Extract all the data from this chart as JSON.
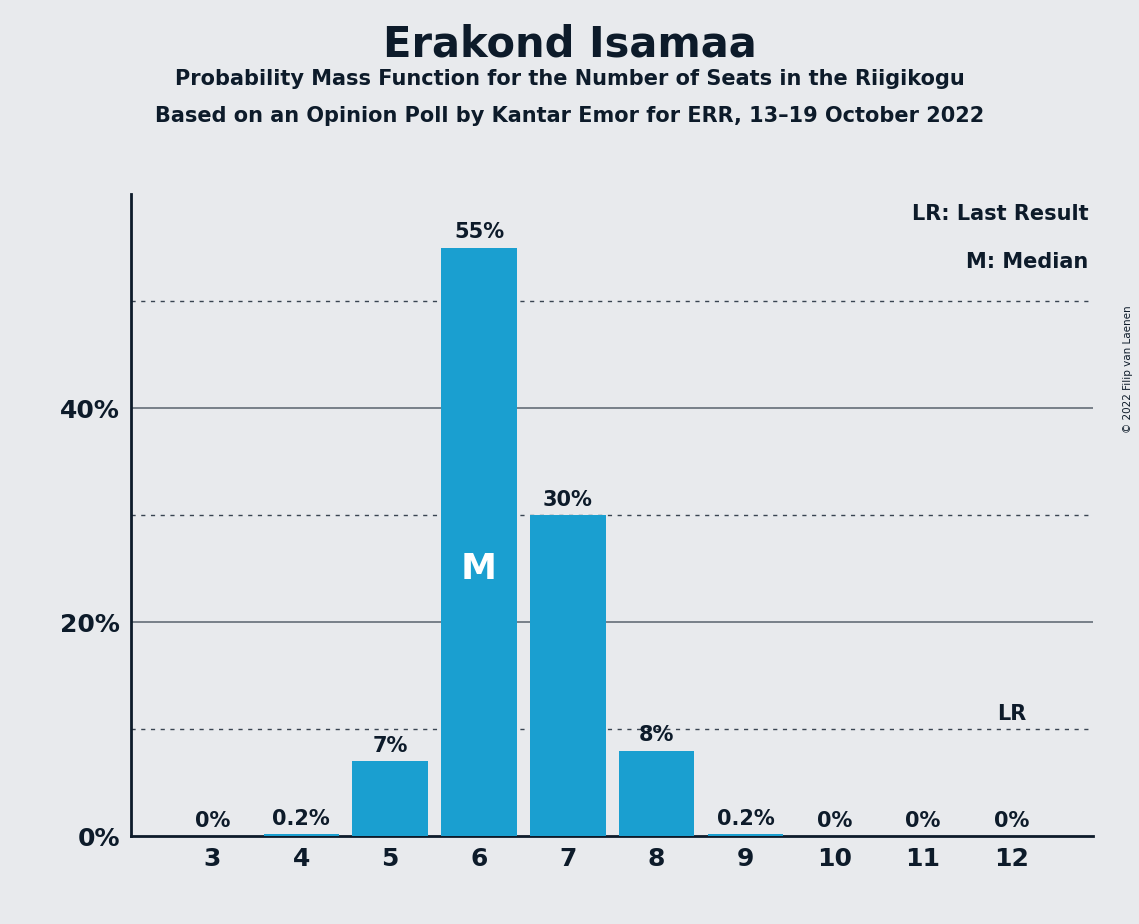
{
  "title": "Erakond Isamaa",
  "subtitle1": "Probability Mass Function for the Number of Seats in the Riigikogu",
  "subtitle2": "Based on an Opinion Poll by Kantar Emor for ERR, 13–19 October 2022",
  "copyright": "© 2022 Filip van Laenen",
  "categories": [
    3,
    4,
    5,
    6,
    7,
    8,
    9,
    10,
    11,
    12
  ],
  "values": [
    0.0,
    0.2,
    7.0,
    55.0,
    30.0,
    8.0,
    0.2,
    0.0,
    0.0,
    0.0
  ],
  "bar_color": "#1a9fd0",
  "median_seat": 6,
  "lr_seat": 12,
  "background_color": "#e8eaed",
  "text_color": "#0d1b2a",
  "yticks": [
    0,
    20,
    40
  ],
  "dotted_lines": [
    10,
    30,
    50
  ],
  "solid_lines": [
    20,
    40
  ],
  "ylim": [
    0,
    60
  ],
  "legend_lr": "LR: Last Result",
  "legend_m": "M: Median"
}
